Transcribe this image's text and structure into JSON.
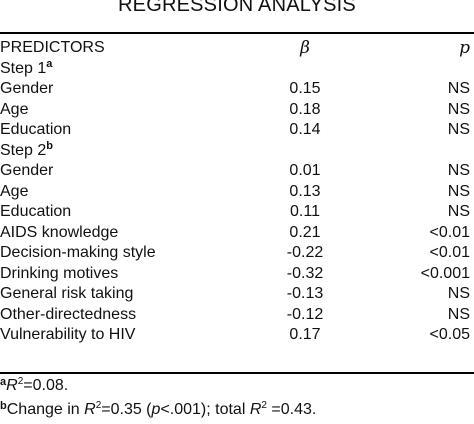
{
  "title": "REGRESSION ANALYSIS",
  "headers": {
    "predictors": "PREDICTORS",
    "beta": "β",
    "p": "p"
  },
  "step1": {
    "label": "Step 1",
    "marker": "a",
    "rows": [
      {
        "predictor": "Gender",
        "beta": "0.15",
        "p": "NS"
      },
      {
        "predictor": "Age",
        "beta": "0.18",
        "p": "NS"
      },
      {
        "predictor": "Education",
        "beta": "0.14",
        "p": "NS"
      }
    ]
  },
  "step2": {
    "label": "Step 2",
    "marker": "b",
    "rows": [
      {
        "predictor": "Gender",
        "beta": "0.01",
        "p": "NS"
      },
      {
        "predictor": "Age",
        "beta": "0.13",
        "p": "NS"
      },
      {
        "predictor": "Education",
        "beta": "0.11",
        "p": "NS"
      },
      {
        "predictor": "AIDS knowledge",
        "beta": "0.21",
        "p": "<0.01"
      },
      {
        "predictor": "Decision-making style",
        "beta": "-0.22",
        "p": "<0.01"
      },
      {
        "predictor": "Drinking motives",
        "beta": "-0.32",
        "p": "<0.001"
      },
      {
        "predictor": "General risk taking",
        "beta": "-0.13",
        "p": "NS"
      },
      {
        "predictor": "Other-directedness",
        "beta": "-0.12",
        "p": "NS"
      },
      {
        "predictor": "Vulnerability to HIV",
        "beta": "0.17",
        "p": "<0.05"
      }
    ]
  },
  "footnotes": {
    "a": {
      "marker": "a",
      "r_label": "R",
      "square": "2",
      "text": "=0.08."
    },
    "b": {
      "marker": "b",
      "part1": "Change in ",
      "r_label": "R",
      "square": "2",
      "part2": "=0.35 (",
      "p_label": "p",
      "part3": "<.001); total ",
      "r_label2": "R",
      "square2": "2",
      "part4": " =0.43."
    }
  }
}
